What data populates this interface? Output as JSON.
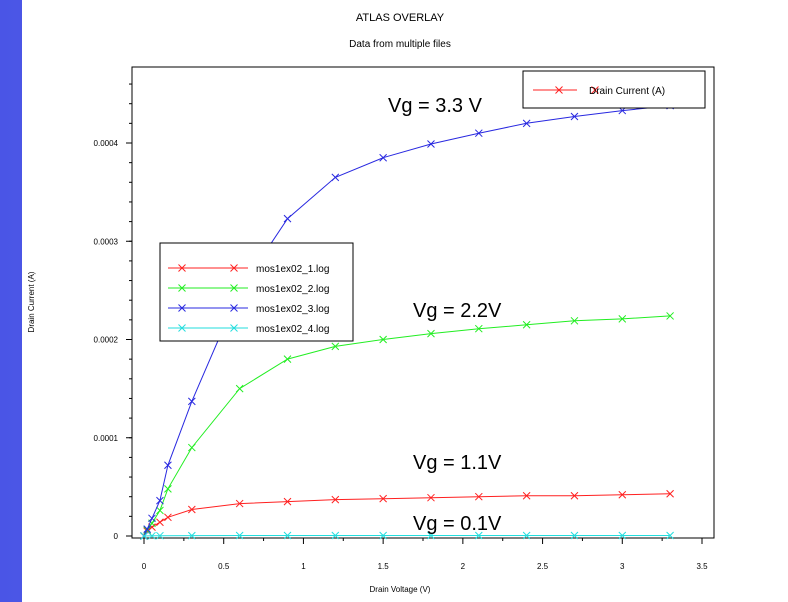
{
  "chart_data": {
    "type": "line",
    "title": "ATLAS OVERLAY",
    "subtitle": "Data from multiple files",
    "xlabel": "Drain Voltage (V)",
    "ylabel": "Drain Current (A)",
    "xlim": [
      0,
      3.6
    ],
    "ylim": [
      0,
      0.00048
    ],
    "xticks": [
      0,
      0.5,
      1,
      1.5,
      2,
      2.5,
      3,
      3.5
    ],
    "xtick_labels": [
      "0",
      "0.5",
      "1",
      "1.5",
      "2",
      "2.5",
      "3",
      "3.5"
    ],
    "yticks": [
      0,
      0.0001,
      0.0002,
      0.0003,
      0.0004
    ],
    "ytick_labels": [
      "0",
      "0.0001",
      "0.0002",
      "0.0003",
      "0.0004"
    ],
    "grid": false,
    "series": [
      {
        "name": "mos1ex02_1.log",
        "color": "#ff2020",
        "x": [
          0,
          0.02,
          0.05,
          0.1,
          0.15,
          0.3,
          0.6,
          0.9,
          1.2,
          1.5,
          1.8,
          2.1,
          2.4,
          2.7,
          3.0,
          3.3
        ],
        "y": [
          0,
          5e-06,
          9e-06,
          1.4e-05,
          1.9e-05,
          2.7e-05,
          3.3e-05,
          3.5e-05,
          3.7e-05,
          3.8e-05,
          3.9e-05,
          4e-05,
          4.1e-05,
          4.1e-05,
          4.2e-05,
          4.3e-05
        ]
      },
      {
        "name": "mos1ex02_2.log",
        "color": "#22ee22",
        "x": [
          0,
          0.02,
          0.05,
          0.1,
          0.15,
          0.3,
          0.6,
          0.9,
          1.2,
          1.5,
          1.8,
          2.1,
          2.4,
          2.7,
          3.0,
          3.3
        ],
        "y": [
          0,
          6e-06,
          1.3e-05,
          2.6e-05,
          4.8e-05,
          9e-05,
          0.00015,
          0.00018,
          0.000193,
          0.0002,
          0.000206,
          0.000211,
          0.000215,
          0.000219,
          0.000221,
          0.000224
        ]
      },
      {
        "name": "mos1ex02_3.log",
        "color": "#2828e0",
        "x": [
          0,
          0.02,
          0.05,
          0.1,
          0.15,
          0.3,
          0.6,
          0.9,
          1.2,
          1.5,
          1.8,
          2.1,
          2.4,
          2.7,
          3.0,
          3.3
        ],
        "y": [
          0,
          7e-06,
          1.8e-05,
          3.6e-05,
          7.2e-05,
          0.000137,
          0.00025,
          0.000323,
          0.000365,
          0.000385,
          0.000399,
          0.00041,
          0.00042,
          0.000427,
          0.000433,
          0.000438
        ]
      },
      {
        "name": "mos1ex02_4.log",
        "color": "#22dddd",
        "x": [
          0,
          0.05,
          0.1,
          0.3,
          0.6,
          0.9,
          1.2,
          1.5,
          1.8,
          2.1,
          2.4,
          2.7,
          3.0,
          3.3
        ],
        "y": [
          0,
          2e-07,
          3e-07,
          4e-07,
          5e-07,
          5e-07,
          5e-07,
          5e-07,
          5e-07,
          5e-07,
          5e-07,
          5e-07,
          5e-07,
          5e-07
        ]
      }
    ],
    "legend": {
      "placement": "left-middle",
      "entries": [
        "mos1ex02_1.log",
        "mos1ex02_2.log",
        "mos1ex02_3.log",
        "mos1ex02_4.log"
      ]
    },
    "legend2": {
      "placement": "top-right",
      "entry": "Drain Current (A)",
      "color": "#ff2020"
    },
    "annotations": [
      "Vg = 3.3 V",
      "Vg = 2.2V",
      "Vg = 1.1V",
      "Vg = 0.1V"
    ]
  }
}
